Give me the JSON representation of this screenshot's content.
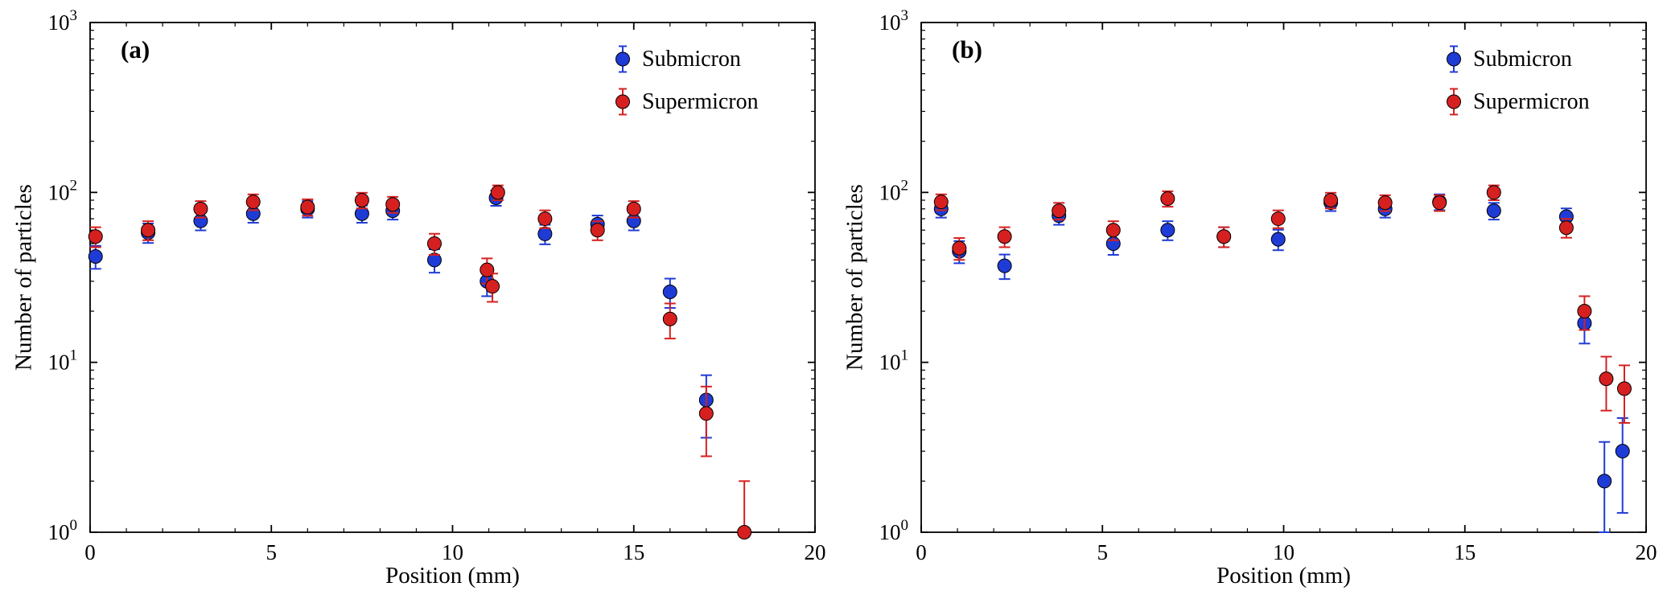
{
  "figure": {
    "background": "#ffffff",
    "accent_colors": {
      "submicron": "#1f3bd6",
      "supermicron": "#d62020"
    }
  },
  "chart_data": [
    {
      "type": "scatter",
      "panel_label": "(a)",
      "xlabel": "Position (mm)",
      "ylabel": "Number of particles",
      "xlim": [
        0,
        20
      ],
      "ylim_log10": [
        0,
        3
      ],
      "xticks": [
        0,
        5,
        10,
        15,
        20
      ],
      "yticks_exp": [
        0,
        1,
        2,
        3
      ],
      "legend_position": "top-right",
      "grid": false,
      "series": [
        {
          "name": "Submicron",
          "color": "#1f3bd6",
          "x": [
            0.15,
            1.6,
            3.05,
            4.5,
            6.0,
            7.5,
            8.35,
            9.5,
            10.95,
            11.2,
            12.55,
            14.0,
            15.0,
            16.0,
            17.0
          ],
          "y": [
            42,
            58,
            68,
            75,
            80,
            75,
            78,
            40,
            30,
            93,
            57,
            65,
            68,
            26,
            6
          ],
          "yerr": [
            6.5,
            7.6,
            8.2,
            8.7,
            8.9,
            8.7,
            8.8,
            6.3,
            5.5,
            9.6,
            7.5,
            8.1,
            8.2,
            5.1,
            2.4
          ]
        },
        {
          "name": "Supermicron",
          "color": "#d62020",
          "x": [
            0.15,
            1.6,
            3.05,
            4.5,
            6.0,
            7.5,
            8.35,
            9.5,
            10.95,
            11.1,
            11.25,
            12.55,
            14.0,
            15.0,
            16.0,
            17.0,
            18.05
          ],
          "y": [
            55,
            60,
            80,
            88,
            82,
            90,
            85,
            50,
            35,
            28,
            100,
            70,
            60,
            80,
            18,
            5,
            1
          ],
          "yerr": [
            7.4,
            7.7,
            8.9,
            9.4,
            9.1,
            9.5,
            9.2,
            7.1,
            5.9,
            5.3,
            10,
            8.4,
            7.7,
            8.9,
            4.2,
            2.2,
            1.0
          ]
        }
      ]
    },
    {
      "type": "scatter",
      "panel_label": "(b)",
      "xlabel": "Position (mm)",
      "ylabel": "Number of particles",
      "xlim": [
        0,
        20
      ],
      "ylim_log10": [
        0,
        3
      ],
      "xticks": [
        0,
        5,
        10,
        15,
        20
      ],
      "yticks_exp": [
        0,
        1,
        2,
        3
      ],
      "legend_position": "top-right",
      "grid": false,
      "series": [
        {
          "name": "Submicron",
          "color": "#1f3bd6",
          "x": [
            0.55,
            1.05,
            2.3,
            3.8,
            5.3,
            6.8,
            8.35,
            9.85,
            11.3,
            12.8,
            14.3,
            15.8,
            17.8,
            18.3,
            18.85,
            19.35
          ],
          "y": [
            80,
            45,
            37,
            73,
            50,
            60,
            55,
            53,
            87,
            80,
            88,
            78,
            72,
            17,
            2,
            3
          ],
          "yerr": [
            8.9,
            6.7,
            6.1,
            8.5,
            7.1,
            7.7,
            7.4,
            7.3,
            9.3,
            8.9,
            9.4,
            8.8,
            8.5,
            4.1,
            1.4,
            1.7
          ]
        },
        {
          "name": "Supermicron",
          "color": "#d62020",
          "x": [
            0.55,
            1.05,
            2.3,
            3.8,
            5.3,
            6.8,
            8.35,
            9.85,
            11.3,
            12.8,
            14.3,
            15.8,
            17.8,
            18.3,
            18.9,
            19.4
          ],
          "y": [
            88,
            47,
            55,
            78,
            60,
            92,
            55,
            70,
            90,
            87,
            87,
            100,
            62,
            20,
            8,
            7
          ],
          "yerr": [
            9.4,
            6.9,
            7.4,
            8.8,
            7.7,
            9.6,
            7.4,
            8.4,
            9.5,
            9.3,
            9.3,
            10,
            7.9,
            4.5,
            2.8,
            2.6
          ]
        }
      ]
    }
  ]
}
